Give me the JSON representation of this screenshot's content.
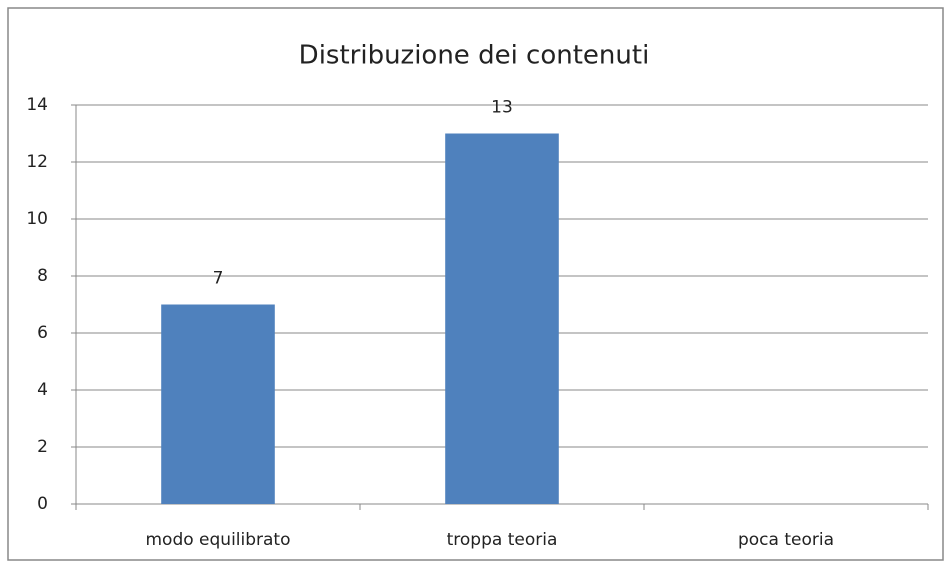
{
  "chart_data": {
    "type": "bar",
    "title": "Distribuzione dei contenuti",
    "categories": [
      "modo equilibrato",
      "troppa teoria",
      "poca teoria"
    ],
    "values": [
      7,
      13,
      null
    ],
    "color": "#4f81bd",
    "ylim": [
      0,
      14
    ],
    "yticks": [
      0,
      2,
      4,
      6,
      8,
      10,
      12,
      14
    ],
    "grid": true
  }
}
